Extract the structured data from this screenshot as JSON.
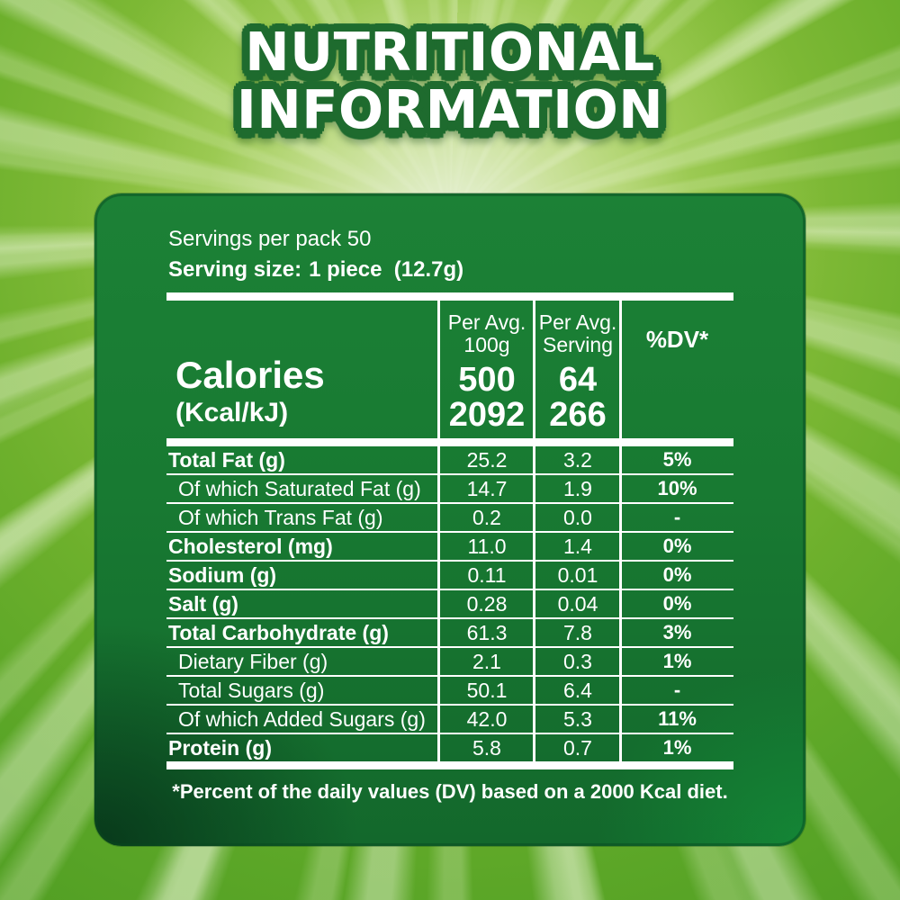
{
  "title": {
    "line1": "NUTRITIONAL",
    "line2": "INFORMATION"
  },
  "serving": {
    "per_pack": "Servings per pack 50",
    "size_label": "Serving size:",
    "size_value": "1 piece  (12.7g)"
  },
  "table": {
    "col1": {
      "line1": "Per Avg.",
      "line2": "100g"
    },
    "col2": {
      "line1": "Per Avg.",
      "line2": "Serving"
    },
    "col3": {
      "label": "%DV*"
    },
    "calories": {
      "label": "Calories",
      "sub": "(Kcal/kJ)",
      "per100_kcal": "500",
      "per100_kj": "2092",
      "serving_kcal": "64",
      "serving_kj": "266"
    },
    "rows": [
      {
        "label": "Total Fat (g)",
        "per100": "25.2",
        "per_serving": "3.2",
        "dv": "5%",
        "bold": true,
        "indent": false
      },
      {
        "label": "Of which Saturated Fat (g)",
        "per100": "14.7",
        "per_serving": "1.9",
        "dv": "10%",
        "bold": false,
        "indent": true
      },
      {
        "label": "Of which Trans Fat (g)",
        "per100": "0.2",
        "per_serving": "0.0",
        "dv": "-",
        "bold": false,
        "indent": true
      },
      {
        "label": "Cholesterol (mg)",
        "per100": "11.0",
        "per_serving": "1.4",
        "dv": "0%",
        "bold": true,
        "indent": false
      },
      {
        "label": "Sodium (g)",
        "per100": "0.11",
        "per_serving": "0.01",
        "dv": "0%",
        "bold": true,
        "indent": false
      },
      {
        "label": "Salt (g)",
        "per100": "0.28",
        "per_serving": "0.04",
        "dv": "0%",
        "bold": true,
        "indent": false
      },
      {
        "label": "Total Carbohydrate (g)",
        "per100": "61.3",
        "per_serving": "7.8",
        "dv": "3%",
        "bold": true,
        "indent": false
      },
      {
        "label": "Dietary Fiber (g)",
        "per100": "2.1",
        "per_serving": "0.3",
        "dv": "1%",
        "bold": false,
        "indent": true
      },
      {
        "label": "Total Sugars (g)",
        "per100": "50.1",
        "per_serving": "6.4",
        "dv": "-",
        "bold": false,
        "indent": true
      },
      {
        "label": "Of which Added Sugars (g)",
        "per100": "42.0",
        "per_serving": "5.3",
        "dv": "11%",
        "bold": false,
        "indent": true
      },
      {
        "label": "Protein (g)",
        "per100": "5.8",
        "per_serving": "0.7",
        "dv": "1%",
        "bold": true,
        "indent": false
      }
    ]
  },
  "footnote": "*Percent of the daily values (DV) based on a 2000 Kcal diet.",
  "colors": {
    "panel_green": "#187f34",
    "panel_dark_corner": "#0a3a1e",
    "panel_bright_corner": "#129238",
    "background_green": "#6fb12c",
    "title_outline": "#1e6b2e",
    "text": "#ffffff"
  }
}
